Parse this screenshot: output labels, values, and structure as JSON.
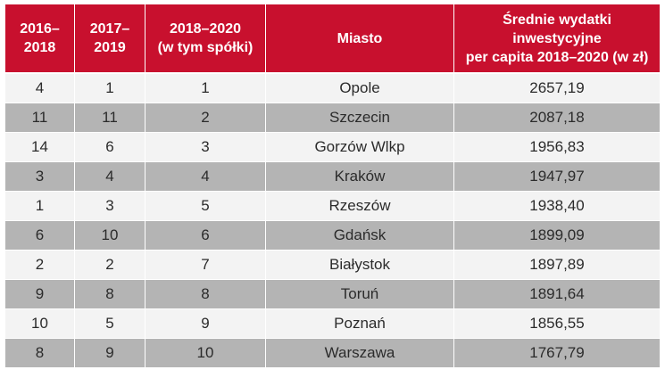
{
  "table": {
    "headers": [
      "2016–\n2018",
      "2017–\n2019",
      "2018–2020\n(w tym spółki)",
      "Miasto",
      "Średnie wydatki inwestycyjne\nper capita 2018–2020 (w zł)"
    ],
    "rows": [
      [
        "4",
        "1",
        "1",
        "Opole",
        "2657,19"
      ],
      [
        "11",
        "11",
        "2",
        "Szczecin",
        "2087,18"
      ],
      [
        "14",
        "6",
        "3",
        "Gorzów Wlkp",
        "1956,83"
      ],
      [
        "3",
        "4",
        "4",
        "Kraków",
        "1947,97"
      ],
      [
        "1",
        "3",
        "5",
        "Rzeszów",
        "1938,40"
      ],
      [
        "6",
        "10",
        "6",
        "Gdańsk",
        "1899,09"
      ],
      [
        "2",
        "2",
        "7",
        "Białystok",
        "1897,89"
      ],
      [
        "9",
        "8",
        "8",
        "Toruń",
        "1891,64"
      ],
      [
        "10",
        "5",
        "9",
        "Poznań",
        "1856,55"
      ],
      [
        "8",
        "9",
        "10",
        "Warszawa",
        "1767,79"
      ]
    ]
  },
  "colors": {
    "header_bg": "#c8102e",
    "row_light": "#f3f3f3",
    "row_dark": "#b4b4b4"
  }
}
